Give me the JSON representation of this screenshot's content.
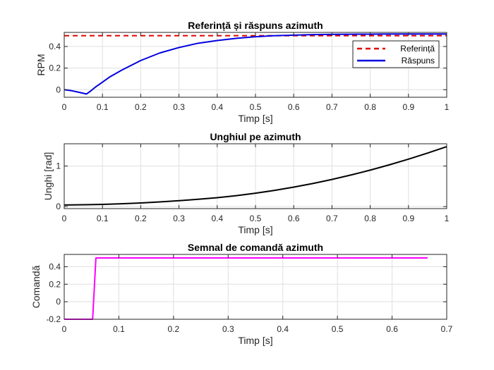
{
  "chart_data": [
    {
      "type": "line",
      "title": "Referință și răspuns azimuth",
      "xlabel": "Timp [s]",
      "ylabel": "RPM",
      "xlim": [
        0,
        1
      ],
      "ylim": [
        -0.07,
        0.53
      ],
      "xticks": [
        0,
        0.1,
        0.2,
        0.3,
        0.4,
        0.5,
        0.6,
        0.7,
        0.8,
        0.9,
        1
      ],
      "xtick_labels": [
        "0",
        "0.1",
        "0.2",
        "0.3",
        "0.4",
        "0.5",
        "0.6",
        "0.7",
        "0.8",
        "0.9",
        "1"
      ],
      "yticks": [
        0,
        0.2,
        0.4
      ],
      "ytick_labels": [
        "0",
        "0.2",
        "0.4"
      ],
      "grid": true,
      "legend": "top-right",
      "series": [
        {
          "name": "Referință",
          "color": "#e00000",
          "style": "dashed",
          "x": [
            0,
            1
          ],
          "y": [
            0.5,
            0.5
          ]
        },
        {
          "name": "Răspuns",
          "color": "#0000e0",
          "style": "solid",
          "x": [
            0,
            0.02,
            0.04,
            0.058,
            0.07,
            0.08,
            0.1,
            0.12,
            0.15,
            0.2,
            0.25,
            0.3,
            0.35,
            0.4,
            0.45,
            0.5,
            0.55,
            0.6,
            0.65,
            0.7,
            0.75,
            0.8,
            0.85,
            0.9,
            0.95,
            1.0
          ],
          "y": [
            0.0,
            -0.01,
            -0.025,
            -0.04,
            -0.01,
            0.02,
            0.07,
            0.12,
            0.18,
            0.27,
            0.34,
            0.39,
            0.43,
            0.455,
            0.475,
            0.49,
            0.5,
            0.505,
            0.51,
            0.512,
            0.513,
            0.514,
            0.515,
            0.515,
            0.515,
            0.515
          ]
        }
      ]
    },
    {
      "type": "line",
      "title": "Unghiul pe azimuth",
      "xlabel": "Timp [s]",
      "ylabel": "Unghi [rad]",
      "xlim": [
        0,
        1
      ],
      "ylim": [
        -0.05,
        1.55
      ],
      "xticks": [
        0,
        0.1,
        0.2,
        0.3,
        0.4,
        0.5,
        0.6,
        0.7,
        0.8,
        0.9,
        1
      ],
      "xtick_labels": [
        "0",
        "0.1",
        "0.2",
        "0.3",
        "0.4",
        "0.5",
        "0.6",
        "0.7",
        "0.8",
        "0.9",
        "1"
      ],
      "yticks": [
        0,
        1
      ],
      "ytick_labels": [
        "0",
        "1"
      ],
      "grid": true,
      "series": [
        {
          "color": "#000000",
          "style": "solid",
          "x": [
            0,
            0.05,
            0.1,
            0.15,
            0.2,
            0.25,
            0.3,
            0.35,
            0.4,
            0.45,
            0.5,
            0.55,
            0.6,
            0.65,
            0.7,
            0.75,
            0.8,
            0.85,
            0.9,
            0.95,
            1.0
          ],
          "y": [
            0.04,
            0.045,
            0.055,
            0.07,
            0.09,
            0.115,
            0.145,
            0.18,
            0.22,
            0.27,
            0.33,
            0.4,
            0.48,
            0.57,
            0.67,
            0.78,
            0.9,
            1.03,
            1.17,
            1.32,
            1.48
          ]
        }
      ]
    },
    {
      "type": "line",
      "title": "Semnal de comandă azimuth",
      "xlabel": "Timp [s]",
      "ylabel": "Comandă",
      "xlim": [
        0,
        0.7
      ],
      "ylim": [
        -0.2,
        0.54
      ],
      "xticks": [
        0,
        0.1,
        0.2,
        0.3,
        0.4,
        0.5,
        0.6,
        0.7
      ],
      "xtick_labels": [
        "0",
        "0.1",
        "0.2",
        "0.3",
        "0.4",
        "0.5",
        "0.6",
        "0.7"
      ],
      "yticks": [
        -0.2,
        0,
        0.2,
        0.4
      ],
      "ytick_labels": [
        "-0.2",
        "0",
        "0.2",
        "0.4"
      ],
      "grid": true,
      "series": [
        {
          "color": "#ff00ff",
          "style": "solid",
          "x": [
            0,
            0.052,
            0.058,
            0.665
          ],
          "y": [
            -0.2,
            -0.2,
            0.5,
            0.5
          ]
        }
      ]
    }
  ]
}
